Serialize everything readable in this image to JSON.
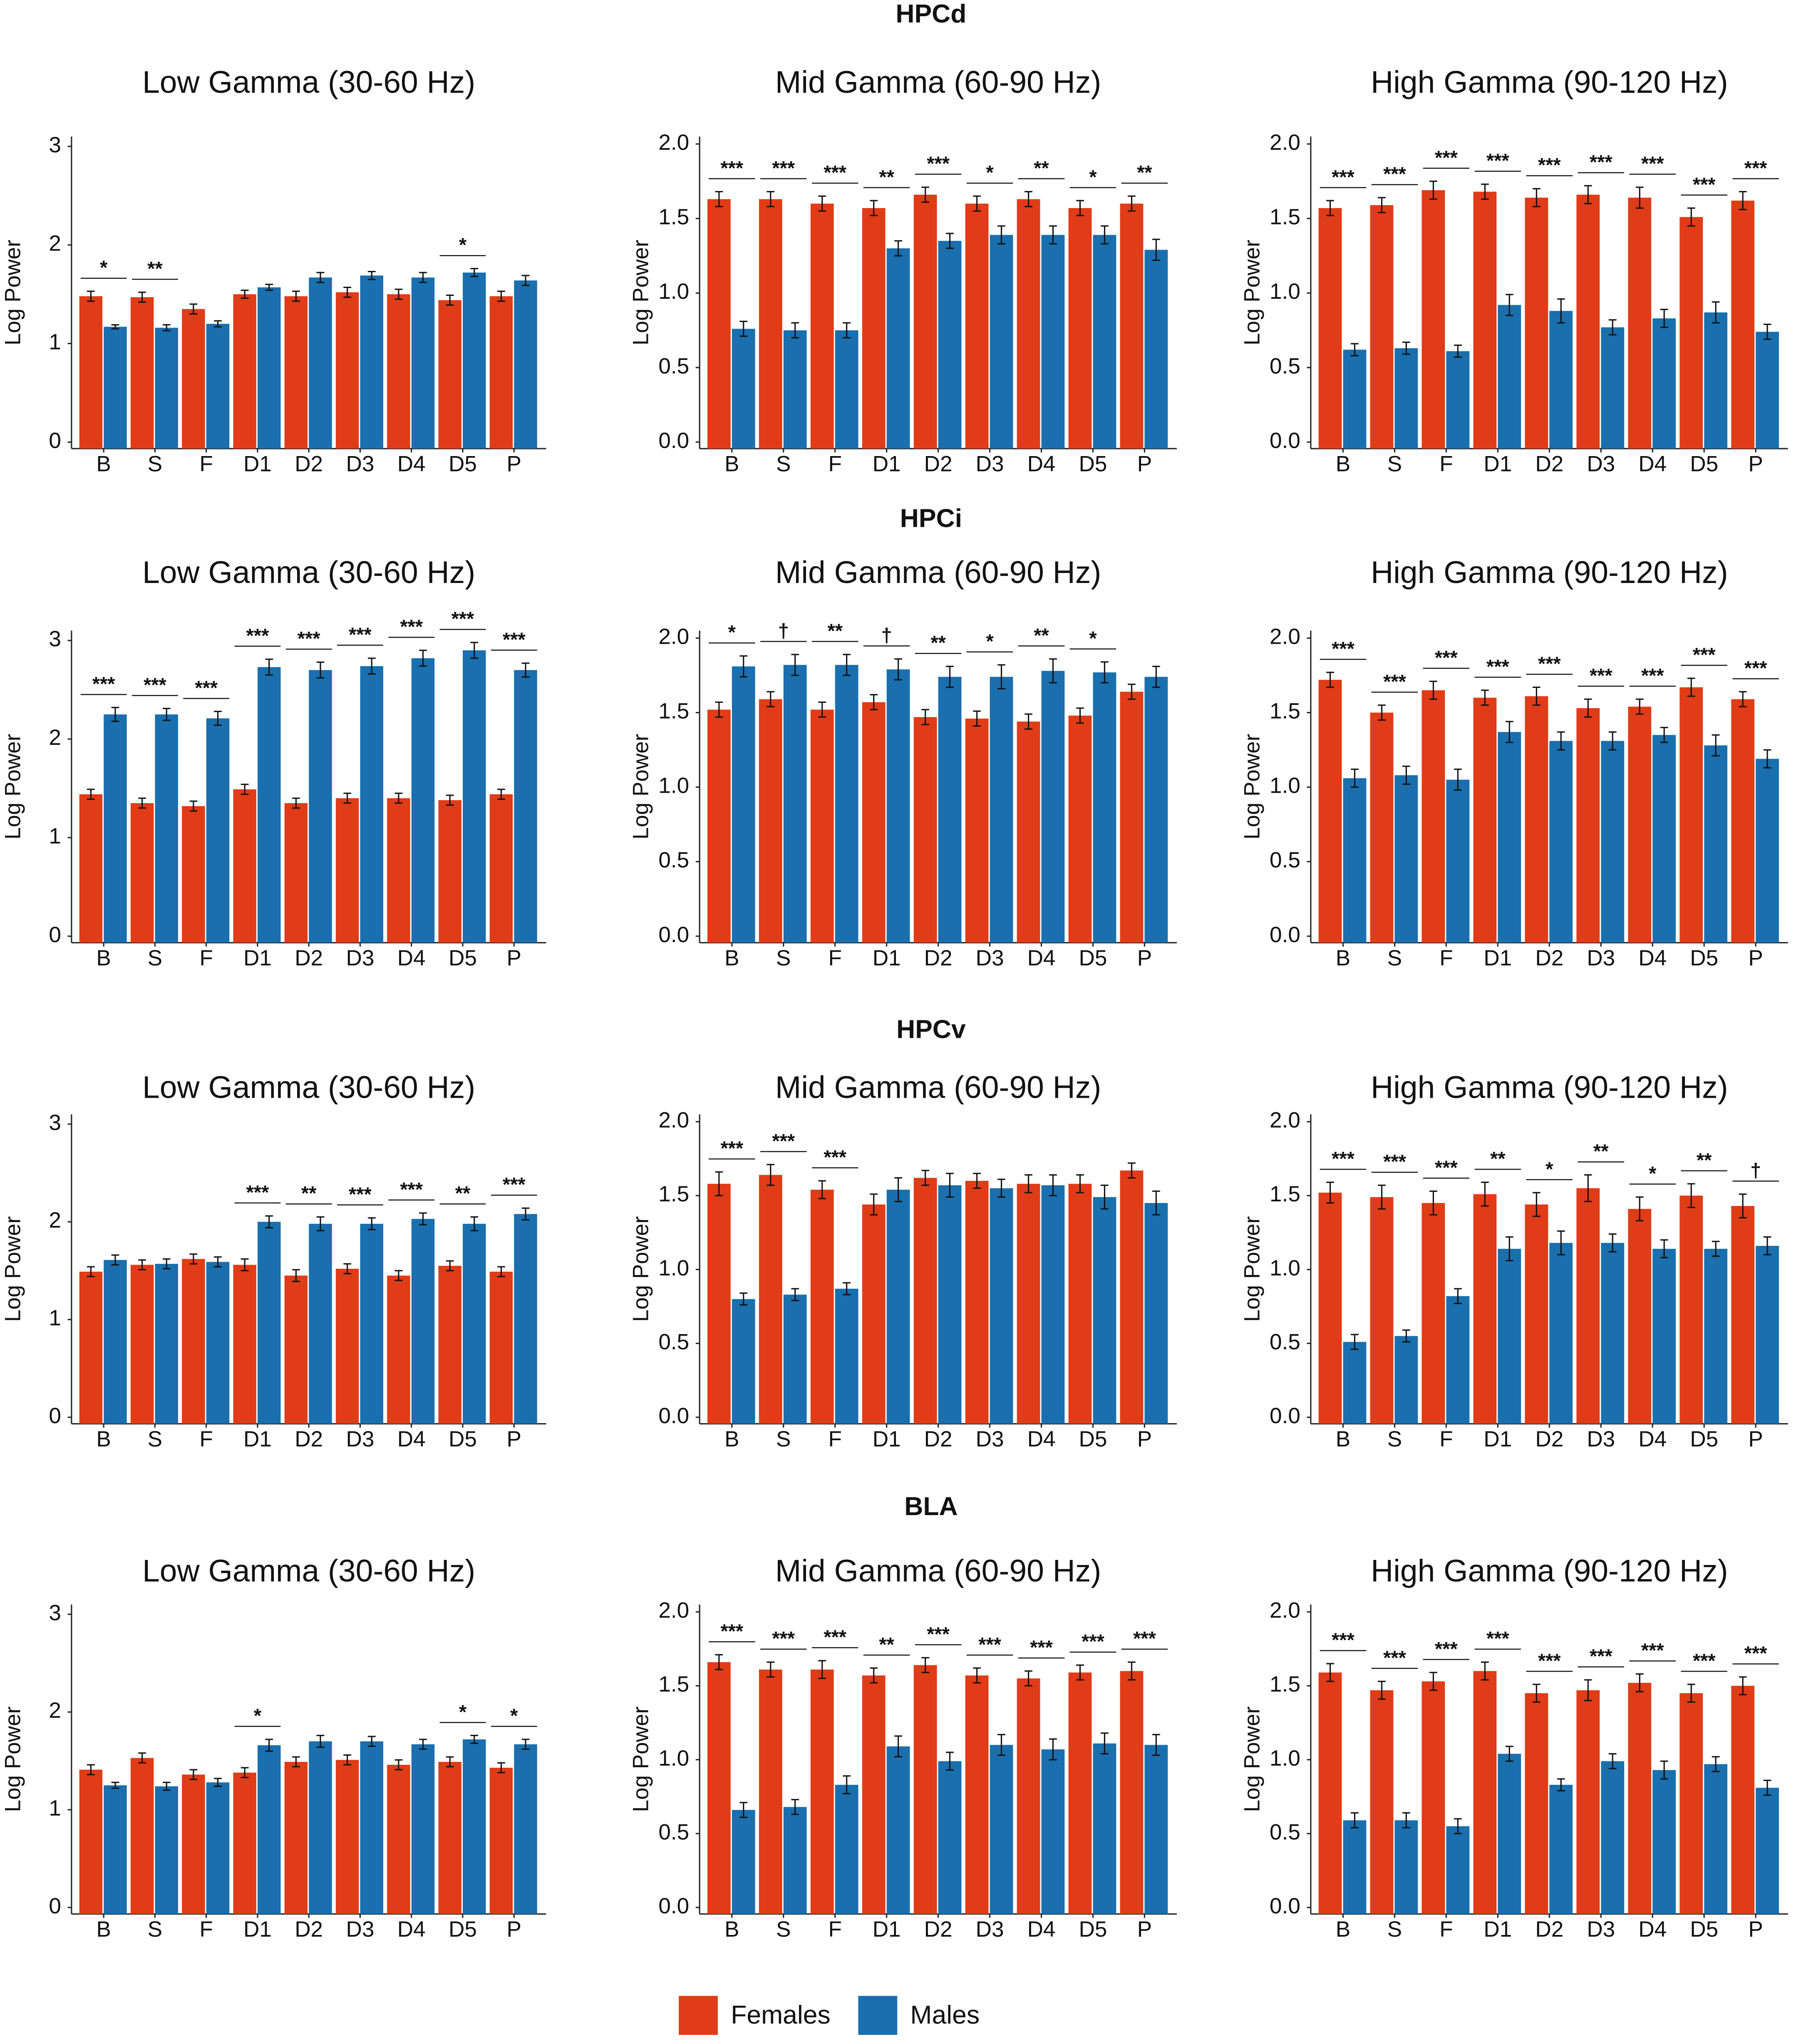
{
  "row_titles": [
    "HPCd",
    "HPCi",
    "HPCv",
    "BLA"
  ],
  "legend": [
    {
      "name": "Females",
      "color": "#e03c17"
    },
    {
      "name": "Males",
      "color": "#1a6fae"
    }
  ],
  "chart_data": [
    {
      "type": "bar",
      "title": "Low Gamma (30-60 Hz)",
      "ylabel": "Log Power",
      "categories": [
        "B",
        "S",
        "F",
        "D1",
        "D2",
        "D3",
        "D4",
        "D5",
        "P"
      ],
      "ylim": [
        0,
        3.1
      ],
      "yticks": [
        0,
        1,
        2,
        3
      ],
      "series": [
        {
          "values": [
            1.48,
            1.47,
            1.35,
            1.5,
            1.48,
            1.52,
            1.5,
            1.44,
            1.48
          ],
          "errors": [
            0.05,
            0.05,
            0.05,
            0.04,
            0.05,
            0.05,
            0.05,
            0.05,
            0.05
          ]
        },
        {
          "values": [
            1.17,
            1.16,
            1.2,
            1.57,
            1.67,
            1.69,
            1.67,
            1.72,
            1.64
          ],
          "errors": [
            0.02,
            0.03,
            0.03,
            0.03,
            0.05,
            0.04,
            0.05,
            0.04,
            0.05
          ]
        }
      ],
      "annotations": [
        "*",
        "**",
        null,
        null,
        null,
        null,
        null,
        "*",
        null
      ]
    },
    {
      "type": "bar",
      "title": "Mid Gamma (60-90 Hz)",
      "ylabel": "Log Power",
      "categories": [
        "B",
        "S",
        "F",
        "D1",
        "D2",
        "D3",
        "D4",
        "D5",
        "P"
      ],
      "ylim": [
        0,
        2.05
      ],
      "yticks": [
        {
          "value": 0,
          "label": "0.0"
        },
        0.5,
        {
          "value": 1,
          "label": "1.0"
        },
        1.5,
        {
          "value": 2,
          "label": "2.0"
        }
      ],
      "series": [
        {
          "values": [
            1.63,
            1.63,
            1.6,
            1.57,
            1.66,
            1.6,
            1.63,
            1.57,
            1.6
          ],
          "errors": [
            0.05,
            0.05,
            0.05,
            0.05,
            0.05,
            0.05,
            0.05,
            0.05,
            0.05
          ]
        },
        {
          "values": [
            0.76,
            0.75,
            0.75,
            1.3,
            1.35,
            1.39,
            1.39,
            1.39,
            1.29
          ],
          "errors": [
            0.05,
            0.05,
            0.05,
            0.05,
            0.05,
            0.06,
            0.06,
            0.06,
            0.07
          ]
        }
      ],
      "annotations": [
        "***",
        "***",
        "***",
        "**",
        "***",
        "*",
        "**",
        "*",
        "**"
      ]
    },
    {
      "type": "bar",
      "title": "High Gamma (90-120 Hz)",
      "ylabel": "Log Power",
      "categories": [
        "B",
        "S",
        "F",
        "D1",
        "D2",
        "D3",
        "D4",
        "D5",
        "P"
      ],
      "ylim": [
        0,
        2.05
      ],
      "yticks": [
        {
          "value": 0,
          "label": "0.0"
        },
        0.5,
        {
          "value": 1,
          "label": "1.0"
        },
        1.5,
        {
          "value": 2,
          "label": "2.0"
        }
      ],
      "series": [
        {
          "values": [
            1.57,
            1.59,
            1.69,
            1.68,
            1.64,
            1.66,
            1.64,
            1.51,
            1.62
          ],
          "errors": [
            0.05,
            0.05,
            0.06,
            0.05,
            0.06,
            0.06,
            0.07,
            0.06,
            0.06
          ]
        },
        {
          "values": [
            0.62,
            0.63,
            0.61,
            0.92,
            0.88,
            0.77,
            0.83,
            0.87,
            0.74
          ],
          "errors": [
            0.04,
            0.04,
            0.04,
            0.07,
            0.08,
            0.05,
            0.06,
            0.07,
            0.05
          ]
        }
      ],
      "annotations": [
        "***",
        "***",
        "***",
        "***",
        "***",
        "***",
        "***",
        "***",
        "***"
      ]
    },
    {
      "type": "bar",
      "title": "Low Gamma (30-60 Hz)",
      "ylabel": "Log Power",
      "categories": [
        "B",
        "S",
        "F",
        "D1",
        "D2",
        "D3",
        "D4",
        "D5",
        "P"
      ],
      "ylim": [
        0,
        3.1
      ],
      "yticks": [
        0,
        1,
        2,
        3
      ],
      "series": [
        {
          "values": [
            1.44,
            1.35,
            1.32,
            1.49,
            1.35,
            1.4,
            1.4,
            1.38,
            1.44
          ],
          "errors": [
            0.05,
            0.05,
            0.05,
            0.05,
            0.05,
            0.05,
            0.05,
            0.05,
            0.05
          ]
        },
        {
          "values": [
            2.25,
            2.25,
            2.21,
            2.73,
            2.7,
            2.74,
            2.82,
            2.9,
            2.7
          ],
          "errors": [
            0.07,
            0.06,
            0.07,
            0.08,
            0.08,
            0.08,
            0.08,
            0.08,
            0.07
          ]
        }
      ],
      "annotations": [
        "***",
        "***",
        "***",
        "***",
        "***",
        "***",
        "***",
        "***",
        "***"
      ]
    },
    {
      "type": "bar",
      "title": "Mid Gamma (60-90 Hz)",
      "ylabel": "Log Power",
      "categories": [
        "B",
        "S",
        "F",
        "D1",
        "D2",
        "D3",
        "D4",
        "D5",
        "P"
      ],
      "ylim": [
        0,
        2.05
      ],
      "yticks": [
        {
          "value": 0,
          "label": "0.0"
        },
        0.5,
        {
          "value": 1,
          "label": "1.0"
        },
        1.5,
        {
          "value": 2,
          "label": "2.0"
        }
      ],
      "series": [
        {
          "values": [
            1.52,
            1.59,
            1.52,
            1.57,
            1.47,
            1.46,
            1.44,
            1.48,
            1.64
          ],
          "errors": [
            0.05,
            0.05,
            0.05,
            0.05,
            0.05,
            0.05,
            0.05,
            0.05,
            0.05
          ]
        },
        {
          "values": [
            1.81,
            1.82,
            1.82,
            1.79,
            1.74,
            1.74,
            1.78,
            1.77,
            1.74
          ],
          "errors": [
            0.07,
            0.07,
            0.07,
            0.07,
            0.07,
            0.08,
            0.08,
            0.07,
            0.07
          ]
        }
      ],
      "annotations": [
        "*",
        "†",
        "**",
        "†",
        "**",
        "*",
        "**",
        "*",
        null
      ]
    },
    {
      "type": "bar",
      "title": "High Gamma (90-120 Hz)",
      "ylabel": "Log Power",
      "categories": [
        "B",
        "S",
        "F",
        "D1",
        "D2",
        "D3",
        "D4",
        "D5",
        "P"
      ],
      "ylim": [
        0,
        2.05
      ],
      "yticks": [
        {
          "value": 0,
          "label": "0.0"
        },
        0.5,
        {
          "value": 1,
          "label": "1.0"
        },
        1.5,
        {
          "value": 2,
          "label": "2.0"
        }
      ],
      "series": [
        {
          "values": [
            1.72,
            1.5,
            1.65,
            1.6,
            1.61,
            1.53,
            1.54,
            1.67,
            1.59
          ],
          "errors": [
            0.05,
            0.05,
            0.06,
            0.05,
            0.06,
            0.06,
            0.05,
            0.06,
            0.05
          ]
        },
        {
          "values": [
            1.06,
            1.08,
            1.05,
            1.37,
            1.31,
            1.31,
            1.35,
            1.28,
            1.19
          ],
          "errors": [
            0.06,
            0.06,
            0.07,
            0.07,
            0.06,
            0.06,
            0.05,
            0.07,
            0.06
          ]
        }
      ],
      "annotations": [
        "***",
        "***",
        "***",
        "***",
        "***",
        "***",
        "***",
        "***",
        "***"
      ]
    },
    {
      "type": "bar",
      "title": "Low Gamma (30-60 Hz)",
      "ylabel": "Log Power",
      "categories": [
        "B",
        "S",
        "F",
        "D1",
        "D2",
        "D3",
        "D4",
        "D5",
        "P"
      ],
      "ylim": [
        0,
        3.1
      ],
      "yticks": [
        0,
        1,
        2,
        3
      ],
      "series": [
        {
          "values": [
            1.49,
            1.56,
            1.62,
            1.56,
            1.45,
            1.52,
            1.45,
            1.55,
            1.49
          ],
          "errors": [
            0.05,
            0.05,
            0.05,
            0.06,
            0.06,
            0.05,
            0.05,
            0.05,
            0.05
          ]
        },
        {
          "values": [
            1.61,
            1.57,
            1.59,
            2.0,
            1.98,
            1.98,
            2.03,
            1.98,
            2.08
          ],
          "errors": [
            0.05,
            0.05,
            0.05,
            0.06,
            0.07,
            0.06,
            0.06,
            0.07,
            0.06
          ]
        }
      ],
      "annotations": [
        null,
        null,
        null,
        "***",
        "**",
        "***",
        "***",
        "**",
        "***"
      ]
    },
    {
      "type": "bar",
      "title": "Mid Gamma (60-90 Hz)",
      "ylabel": "Log Power",
      "categories": [
        "B",
        "S",
        "F",
        "D1",
        "D2",
        "D3",
        "D4",
        "D5",
        "P"
      ],
      "ylim": [
        0,
        2.05
      ],
      "yticks": [
        {
          "value": 0,
          "label": "0.0"
        },
        0.5,
        {
          "value": 1,
          "label": "1.0"
        },
        1.5,
        {
          "value": 2,
          "label": "2.0"
        }
      ],
      "series": [
        {
          "values": [
            1.58,
            1.64,
            1.54,
            1.44,
            1.62,
            1.6,
            1.58,
            1.58,
            1.67
          ],
          "errors": [
            0.08,
            0.07,
            0.06,
            0.07,
            0.05,
            0.05,
            0.06,
            0.06,
            0.05
          ]
        },
        {
          "values": [
            0.8,
            0.83,
            0.87,
            1.54,
            1.57,
            1.55,
            1.57,
            1.49,
            1.45
          ],
          "errors": [
            0.04,
            0.04,
            0.04,
            0.08,
            0.08,
            0.06,
            0.07,
            0.08,
            0.08
          ]
        }
      ],
      "annotations": [
        "***",
        "***",
        "***",
        null,
        null,
        null,
        null,
        null,
        null
      ]
    },
    {
      "type": "bar",
      "title": "High Gamma (90-120 Hz)",
      "ylabel": "Log Power",
      "categories": [
        "B",
        "S",
        "F",
        "D1",
        "D2",
        "D3",
        "D4",
        "D5",
        "P"
      ],
      "ylim": [
        0,
        2.05
      ],
      "yticks": [
        {
          "value": 0,
          "label": "0.0"
        },
        0.5,
        {
          "value": 1,
          "label": "1.0"
        },
        1.5,
        {
          "value": 2,
          "label": "2.0"
        }
      ],
      "series": [
        {
          "values": [
            1.52,
            1.49,
            1.45,
            1.51,
            1.44,
            1.55,
            1.41,
            1.5,
            1.43
          ],
          "errors": [
            0.07,
            0.08,
            0.08,
            0.08,
            0.08,
            0.09,
            0.08,
            0.08,
            0.08
          ]
        },
        {
          "values": [
            0.51,
            0.55,
            0.82,
            1.14,
            1.18,
            1.18,
            1.14,
            1.14,
            1.16
          ],
          "errors": [
            0.05,
            0.04,
            0.05,
            0.08,
            0.08,
            0.06,
            0.06,
            0.05,
            0.06
          ]
        }
      ],
      "annotations": [
        "***",
        "***",
        "***",
        "**",
        "*",
        "**",
        "*",
        "**",
        "†"
      ]
    },
    {
      "type": "bar",
      "title": "Low Gamma (30-60 Hz)",
      "ylabel": "Log Power",
      "categories": [
        "B",
        "S",
        "F",
        "D1",
        "D2",
        "D3",
        "D4",
        "D5",
        "P"
      ],
      "ylim": [
        0,
        3.1
      ],
      "yticks": [
        0,
        1,
        2,
        3
      ],
      "series": [
        {
          "values": [
            1.41,
            1.53,
            1.36,
            1.38,
            1.49,
            1.51,
            1.46,
            1.49,
            1.43
          ],
          "errors": [
            0.05,
            0.05,
            0.05,
            0.05,
            0.05,
            0.05,
            0.05,
            0.05,
            0.05
          ]
        },
        {
          "values": [
            1.25,
            1.24,
            1.28,
            1.66,
            1.7,
            1.7,
            1.67,
            1.72,
            1.67
          ],
          "errors": [
            0.03,
            0.04,
            0.04,
            0.06,
            0.06,
            0.05,
            0.05,
            0.04,
            0.05
          ]
        }
      ],
      "annotations": [
        null,
        null,
        null,
        "*",
        null,
        null,
        null,
        "*",
        "*"
      ]
    },
    {
      "type": "bar",
      "title": "Mid Gamma (60-90 Hz)",
      "ylabel": "Log Power",
      "categories": [
        "B",
        "S",
        "F",
        "D1",
        "D2",
        "D3",
        "D4",
        "D5",
        "P"
      ],
      "ylim": [
        0,
        2.05
      ],
      "yticks": [
        {
          "value": 0,
          "label": "0.0"
        },
        0.5,
        {
          "value": 1,
          "label": "1.0"
        },
        1.5,
        {
          "value": 2,
          "label": "2.0"
        }
      ],
      "series": [
        {
          "values": [
            1.66,
            1.61,
            1.61,
            1.57,
            1.64,
            1.57,
            1.55,
            1.59,
            1.6
          ],
          "errors": [
            0.05,
            0.05,
            0.06,
            0.05,
            0.05,
            0.05,
            0.05,
            0.05,
            0.06
          ]
        },
        {
          "values": [
            0.66,
            0.68,
            0.83,
            1.09,
            0.99,
            1.1,
            1.07,
            1.11,
            1.1
          ],
          "errors": [
            0.05,
            0.05,
            0.06,
            0.07,
            0.06,
            0.07,
            0.07,
            0.07,
            0.07
          ]
        }
      ],
      "annotations": [
        "***",
        "***",
        "***",
        "**",
        "***",
        "***",
        "***",
        "***",
        "***"
      ]
    },
    {
      "type": "bar",
      "title": "High Gamma (90-120 Hz)",
      "ylabel": "Log Power",
      "categories": [
        "B",
        "S",
        "F",
        "D1",
        "D2",
        "D3",
        "D4",
        "D5",
        "P"
      ],
      "ylim": [
        0,
        2.05
      ],
      "yticks": [
        {
          "value": 0,
          "label": "0.0"
        },
        0.5,
        {
          "value": 1,
          "label": "1.0"
        },
        1.5,
        {
          "value": 2,
          "label": "2.0"
        }
      ],
      "series": [
        {
          "values": [
            1.59,
            1.47,
            1.53,
            1.6,
            1.45,
            1.47,
            1.52,
            1.45,
            1.5
          ],
          "errors": [
            0.06,
            0.06,
            0.06,
            0.06,
            0.06,
            0.07,
            0.06,
            0.06,
            0.06
          ]
        },
        {
          "values": [
            0.59,
            0.59,
            0.55,
            1.04,
            0.83,
            0.99,
            0.93,
            0.97,
            0.81
          ],
          "errors": [
            0.05,
            0.05,
            0.05,
            0.05,
            0.04,
            0.05,
            0.06,
            0.05,
            0.05
          ]
        }
      ],
      "annotations": [
        "***",
        "***",
        "***",
        "***",
        "***",
        "***",
        "***",
        "***",
        "***"
      ]
    }
  ]
}
